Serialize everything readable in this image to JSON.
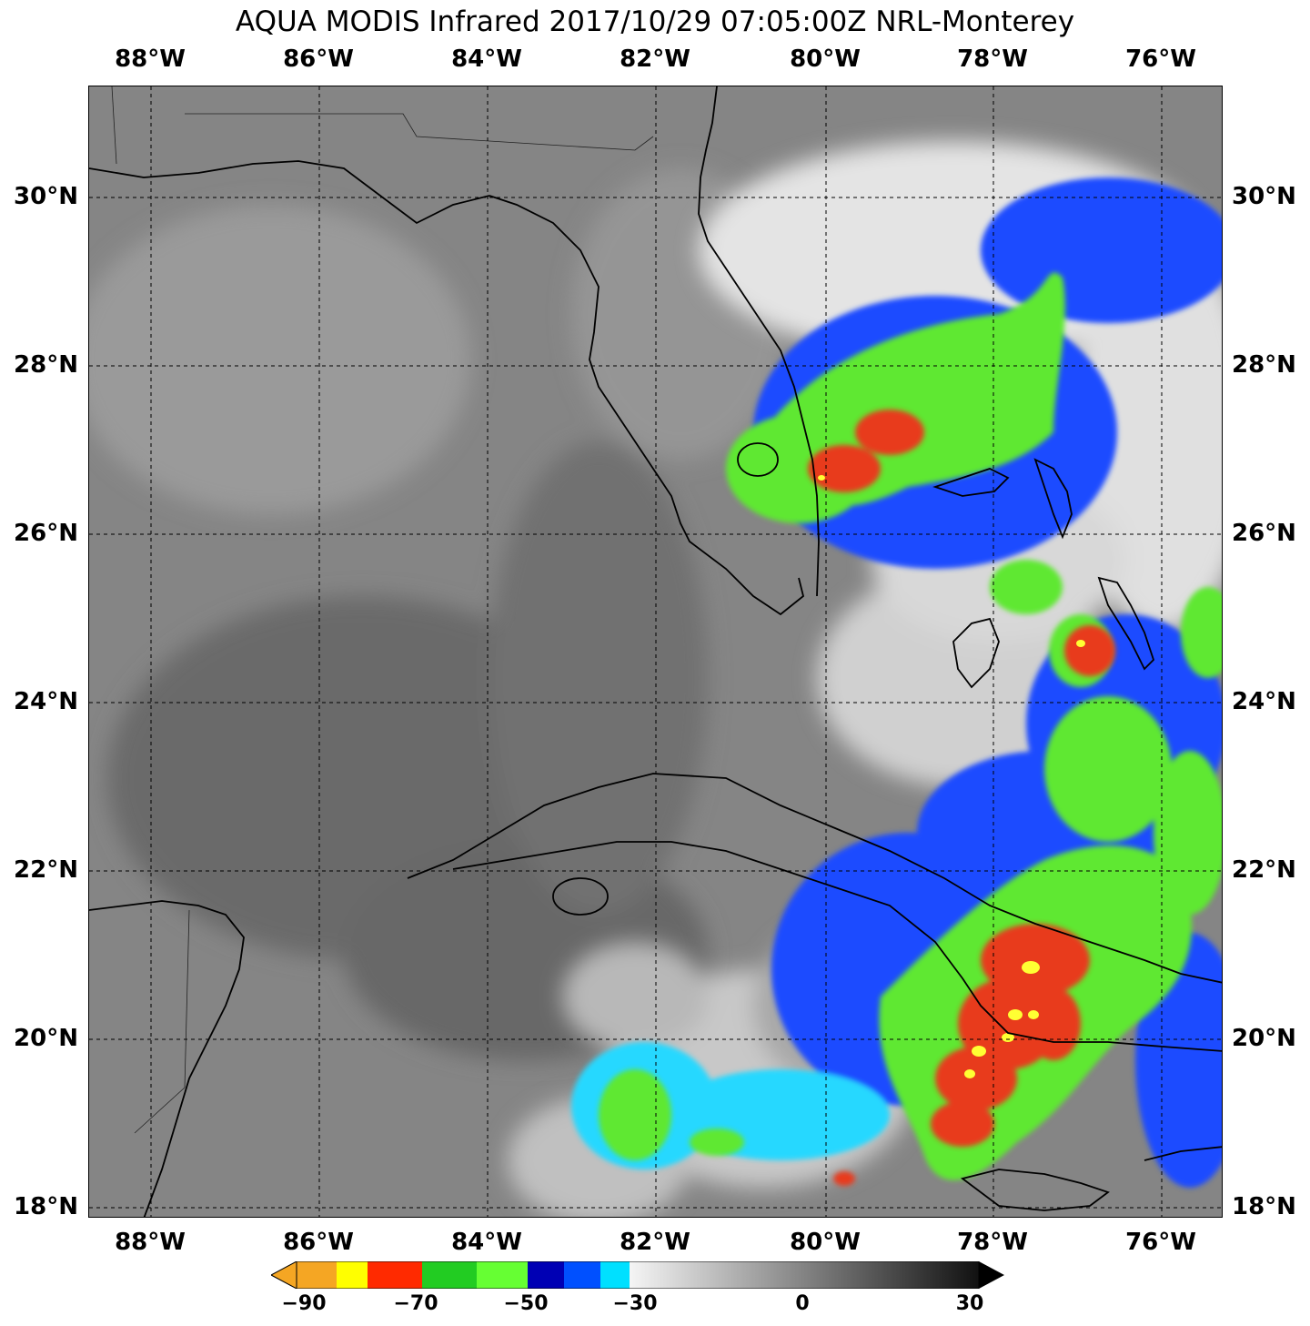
{
  "title": "AQUA MODIS Infrared 2017/10/29 07:05:00Z NRL-Monterey",
  "lon_labels": [
    "88°W",
    "86°W",
    "84°W",
    "82°W",
    "80°W",
    "78°W",
    "76°W"
  ],
  "lat_labels": [
    "30°N",
    "28°N",
    "26°N",
    "24°N",
    "22°N",
    "20°N",
    "18°N"
  ],
  "colorbar": {
    "tick_labels": [
      "−90",
      "−70",
      "−50",
      "−30",
      "0",
      "30"
    ],
    "colors": {
      "orange": "#f5a623",
      "yellow": "#ffff00",
      "red": "#ff2a00",
      "green": "#22cc22",
      "lime": "#66ff33",
      "navy": "#0000b4",
      "blue": "#0050ff",
      "cyan": "#00e0ff",
      "white": "#f0f0f0",
      "black": "#000000"
    }
  },
  "colors": {
    "land_ocean_gray": "#8a8a8a",
    "dark_gray": "#6e6e6e",
    "light_cloud": "#d8d8d8",
    "cold_green": "#5fe833",
    "cold_red": "#e83a1e",
    "cold_yellow": "#ffff33",
    "cold_blue": "#1f4bff",
    "cold_cyan": "#28d8ff",
    "coast": "#000000"
  }
}
